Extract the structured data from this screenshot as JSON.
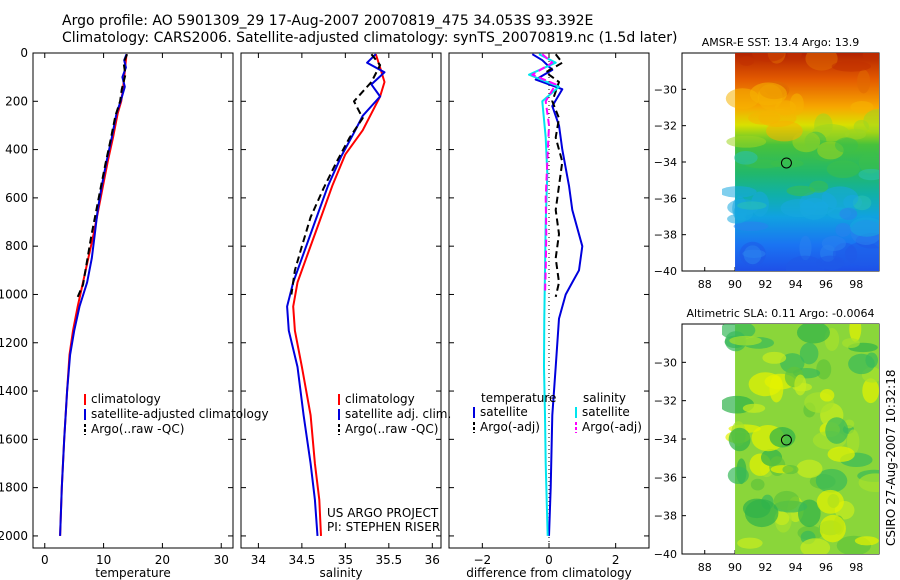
{
  "header": {
    "line1": "Argo profile: AO 5901309_29 17-Aug-2007 20070819_475 34.053S 93.392E",
    "line2": "Climatology: CARS2006. Satellite-adjusted climatology: synTS_20070819.nc (1.5d later)"
  },
  "colors": {
    "climatology": "#ff0000",
    "satellite": "#0000dd",
    "argo": "#000000",
    "sal_satellite": "#00e5ee",
    "sal_argo": "#ff00ff",
    "dotted_zero": "#000000"
  },
  "footer": {
    "project": "US ARGO PROJECT",
    "pi": "PI: STEPHEN RISER",
    "side_credit": "CSIRO 27-Aug-2007 10:32:18"
  },
  "chart_data": [
    {
      "id": "temperature",
      "type": "line",
      "xlabel": "temperature",
      "xlim": [
        -2,
        32
      ],
      "xticks": [
        0,
        10,
        20,
        30
      ],
      "ylim": [
        2050,
        0
      ],
      "yticks": [
        0,
        200,
        400,
        600,
        800,
        1000,
        1200,
        1400,
        1600,
        1800,
        2000
      ],
      "legend": [
        "climatology",
        "satellite-adjusted climatology",
        "Argo(..raw -QC)"
      ],
      "series": [
        {
          "name": "climatology",
          "color": "climatology",
          "dash": "solid",
          "points": [
            [
              13.9,
              5
            ],
            [
              13.7,
              50
            ],
            [
              13.5,
              100
            ],
            [
              13.3,
              150
            ],
            [
              13.0,
              200
            ],
            [
              12.4,
              250
            ],
            [
              11.6,
              350
            ],
            [
              10.7,
              450
            ],
            [
              9.9,
              550
            ],
            [
              9.1,
              650
            ],
            [
              8.3,
              750
            ],
            [
              7.4,
              850
            ],
            [
              6.5,
              950
            ],
            [
              5.6,
              1050
            ],
            [
              4.8,
              1150
            ],
            [
              4.2,
              1250
            ],
            [
              3.8,
              1400
            ],
            [
              3.3,
              1600
            ],
            [
              2.9,
              1800
            ],
            [
              2.6,
              2000
            ]
          ]
        },
        {
          "name": "satellite-adjusted climatology",
          "color": "satellite",
          "dash": "solid",
          "points": [
            [
              13.9,
              5
            ],
            [
              13.5,
              30
            ],
            [
              13.8,
              60
            ],
            [
              13.2,
              100
            ],
            [
              13.6,
              140
            ],
            [
              12.9,
              200
            ],
            [
              12.2,
              250
            ],
            [
              11.4,
              350
            ],
            [
              10.5,
              450
            ],
            [
              9.7,
              550
            ],
            [
              9.0,
              650
            ],
            [
              8.5,
              750
            ],
            [
              8.0,
              850
            ],
            [
              7.2,
              950
            ],
            [
              5.9,
              1050
            ],
            [
              5.0,
              1150
            ],
            [
              4.3,
              1250
            ],
            [
              3.8,
              1400
            ],
            [
              3.3,
              1600
            ],
            [
              2.9,
              1800
            ],
            [
              2.6,
              2000
            ]
          ]
        },
        {
          "name": "Argo(..raw -QC)",
          "color": "argo",
          "dash": "dash",
          "points": [
            [
              14.0,
              5
            ],
            [
              13.4,
              40
            ],
            [
              13.7,
              90
            ],
            [
              13.1,
              150
            ],
            [
              12.8,
              200
            ],
            [
              12.0,
              260
            ],
            [
              11.2,
              360
            ],
            [
              10.3,
              460
            ],
            [
              9.5,
              560
            ],
            [
              8.7,
              660
            ],
            [
              7.9,
              760
            ],
            [
              7.2,
              860
            ],
            [
              6.5,
              960
            ],
            [
              5.6,
              1010
            ]
          ]
        }
      ]
    },
    {
      "id": "salinity",
      "type": "line",
      "xlabel": "salinity",
      "xlim": [
        33.8,
        36.1
      ],
      "xticks": [
        34,
        34.5,
        35,
        35.5,
        36
      ],
      "ylim": [
        2050,
        0
      ],
      "yticks": [
        0,
        200,
        400,
        600,
        800,
        1000,
        1200,
        1400,
        1600,
        1800,
        2000
      ],
      "legend": [
        "climatology",
        "satellite adj. clim.",
        "Argo(..raw -QC)"
      ],
      "series": [
        {
          "name": "climatology",
          "color": "climatology",
          "dash": "solid",
          "points": [
            [
              35.35,
              5
            ],
            [
              35.4,
              60
            ],
            [
              35.45,
              120
            ],
            [
              35.4,
              180
            ],
            [
              35.3,
              250
            ],
            [
              35.2,
              320
            ],
            [
              35.0,
              420
            ],
            [
              34.85,
              550
            ],
            [
              34.7,
              700
            ],
            [
              34.55,
              850
            ],
            [
              34.45,
              950
            ],
            [
              34.4,
              1050
            ],
            [
              34.42,
              1150
            ],
            [
              34.5,
              1300
            ],
            [
              34.6,
              1500
            ],
            [
              34.65,
              1700
            ],
            [
              34.7,
              1850
            ],
            [
              34.72,
              2000
            ]
          ]
        },
        {
          "name": "satellite adj. clim.",
          "color": "satellite",
          "dash": "solid",
          "points": [
            [
              35.35,
              5
            ],
            [
              35.25,
              40
            ],
            [
              35.45,
              80
            ],
            [
              35.3,
              130
            ],
            [
              35.4,
              180
            ],
            [
              35.2,
              260
            ],
            [
              35.1,
              330
            ],
            [
              34.95,
              430
            ],
            [
              34.8,
              550
            ],
            [
              34.65,
              700
            ],
            [
              34.5,
              850
            ],
            [
              34.4,
              950
            ],
            [
              34.33,
              1050
            ],
            [
              34.35,
              1150
            ],
            [
              34.45,
              1300
            ],
            [
              34.52,
              1500
            ],
            [
              34.6,
              1700
            ],
            [
              34.65,
              1850
            ],
            [
              34.68,
              2000
            ]
          ]
        },
        {
          "name": "Argo(..raw -QC)",
          "color": "argo",
          "dash": "dash",
          "points": [
            [
              35.3,
              5
            ],
            [
              35.4,
              50
            ],
            [
              35.3,
              120
            ],
            [
              35.1,
              200
            ],
            [
              35.2,
              270
            ],
            [
              35.05,
              350
            ],
            [
              34.9,
              450
            ],
            [
              34.75,
              560
            ],
            [
              34.6,
              680
            ],
            [
              34.5,
              800
            ],
            [
              34.42,
              900
            ],
            [
              34.38,
              1000
            ]
          ]
        }
      ]
    },
    {
      "id": "difference",
      "type": "line",
      "xlabel": "difference from climatology",
      "xlim": [
        -3,
        3
      ],
      "xticks": [
        -2,
        0,
        2
      ],
      "ylim": [
        2050,
        0
      ],
      "yticks": [
        0,
        200,
        400,
        600,
        800,
        1000,
        1200,
        1400,
        1600,
        1800,
        2000
      ],
      "legend": {
        "temperature_title": "temperature",
        "salinity_title": "salinity",
        "temperature": [
          "satellite",
          "Argo(-adj)"
        ],
        "salinity": [
          "satellite",
          "Argo(-adj)"
        ]
      },
      "series": [
        {
          "name": "temperature satellite",
          "color": "satellite",
          "dash": "solid",
          "points": [
            [
              -0.5,
              5
            ],
            [
              -0.2,
              30
            ],
            [
              0.1,
              70
            ],
            [
              -0.4,
              110
            ],
            [
              0.4,
              150
            ],
            [
              0.1,
              220
            ],
            [
              0.3,
              300
            ],
            [
              0.4,
              400
            ],
            [
              0.6,
              550
            ],
            [
              0.7,
              650
            ],
            [
              1.0,
              800
            ],
            [
              0.9,
              900
            ],
            [
              0.7,
              950
            ],
            [
              0.5,
              1000
            ],
            [
              0.3,
              1100
            ],
            [
              0.2,
              1300
            ],
            [
              0.1,
              1500
            ],
            [
              0.05,
              1800
            ],
            [
              0.0,
              2000
            ]
          ]
        },
        {
          "name": "temperature Argo(-adj)",
          "color": "argo",
          "dash": "dash",
          "points": [
            [
              0.2,
              5
            ],
            [
              0.4,
              40
            ],
            [
              -0.1,
              80
            ],
            [
              0.3,
              120
            ],
            [
              0.1,
              200
            ],
            [
              0.3,
              270
            ],
            [
              0.2,
              350
            ],
            [
              0.4,
              450
            ],
            [
              0.3,
              550
            ],
            [
              0.2,
              650
            ],
            [
              0.3,
              750
            ],
            [
              0.2,
              850
            ],
            [
              0.3,
              950
            ],
            [
              0.2,
              1010
            ]
          ]
        },
        {
          "name": "salinity satellite",
          "color": "sal_satellite",
          "dash": "solid",
          "points": [
            [
              -0.3,
              5
            ],
            [
              0.2,
              40
            ],
            [
              -0.6,
              90
            ],
            [
              0.3,
              140
            ],
            [
              -0.2,
              200
            ],
            [
              -0.1,
              350
            ],
            [
              -0.05,
              500
            ],
            [
              -0.1,
              700
            ],
            [
              -0.12,
              900
            ],
            [
              -0.14,
              1100
            ],
            [
              -0.15,
              1300
            ],
            [
              -0.12,
              1500
            ],
            [
              -0.1,
              1700
            ],
            [
              -0.06,
              1900
            ],
            [
              -0.04,
              2000
            ]
          ]
        },
        {
          "name": "salinity Argo(-adj)",
          "color": "sal_argo",
          "dash": "dash",
          "points": [
            [
              -0.2,
              5
            ],
            [
              0.1,
              40
            ],
            [
              -0.5,
              90
            ],
            [
              0.2,
              130
            ],
            [
              -0.1,
              200
            ],
            [
              0.0,
              300
            ],
            [
              -0.05,
              450
            ],
            [
              -0.1,
              600
            ],
            [
              -0.08,
              750
            ],
            [
              -0.1,
              900
            ],
            [
              -0.12,
              1000
            ]
          ]
        }
      ]
    },
    {
      "id": "sst_map",
      "type": "heatmap",
      "title": "AMSR-E SST: 13.4 Argo: 13.9",
      "xlim": [
        86.5,
        99.5
      ],
      "ylim": [
        -40,
        -28
      ],
      "xticks": [
        88,
        90,
        92,
        94,
        96,
        98
      ],
      "yticks": [
        -30,
        -32,
        -34,
        -36,
        -38,
        -40
      ],
      "data_extent_lon": [
        90,
        99.5
      ],
      "marker": {
        "lon": 93.392,
        "lat": -34.053
      }
    },
    {
      "id": "sla_map",
      "type": "heatmap",
      "title": "Altimetric SLA: 0.11 Argo: -0.0064",
      "xlim": [
        86.5,
        99.5
      ],
      "ylim": [
        -40,
        -28
      ],
      "xticks": [
        88,
        90,
        92,
        94,
        96,
        98
      ],
      "yticks": [
        -30,
        -32,
        -34,
        -36,
        -38,
        -40
      ],
      "data_extent_lon": [
        90,
        99.5
      ],
      "marker": {
        "lon": 93.392,
        "lat": -34.053
      }
    }
  ]
}
